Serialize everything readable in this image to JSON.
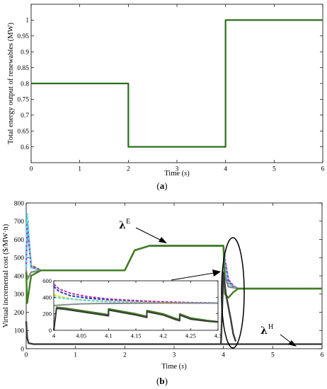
{
  "chart_data": [
    {
      "type": "line",
      "panel_label": "a",
      "xlabel_prefix": "Time",
      "xlabel_unit": "s",
      "ylabel": "Total energy output of renewables (MW)",
      "xlim": [
        0,
        6
      ],
      "ylim": [
        0.55,
        1.05
      ],
      "xticks": [
        "0",
        "1",
        "2",
        "3",
        "4",
        "5",
        "6"
      ],
      "yticks": [
        "0.6",
        "0.65",
        "0.7",
        "0.75",
        "0.8",
        "0.85",
        "0.9",
        "0.95",
        "1"
      ],
      "series": [
        {
          "color": "#2e6e1a",
          "x": [
            0,
            2,
            2,
            4,
            4,
            6
          ],
          "y": [
            0.8,
            0.8,
            0.6,
            0.6,
            1.0,
            1.0
          ]
        }
      ]
    },
    {
      "type": "line",
      "panel_label": "b",
      "xlabel_prefix": "Time",
      "xlabel_unit": "s",
      "ylabel": "Virtual incremental cost ($/MW·h)",
      "xlim": [
        0,
        6
      ],
      "ylim": [
        0,
        800
      ],
      "xticks": [
        "0",
        "1",
        "2",
        "3",
        "4",
        "5",
        "6"
      ],
      "yticks": [
        "0",
        "100",
        "200",
        "300",
        "400",
        "500",
        "600",
        "700",
        "800"
      ],
      "annotations": [
        {
          "symbol": "λ",
          "superscript": "E",
          "x": 1.8,
          "y": 590
        },
        {
          "symbol": "λ",
          "superscript": "H",
          "x": 4.75,
          "y": 100
        }
      ],
      "series": [
        {
          "color": "#ffd000",
          "x": [
            0,
            0.02,
            0.1,
            0.3,
            2.0,
            2.2,
            2.5,
            3.0,
            4.0,
            4.03,
            4.1,
            4.2,
            4.3,
            6.0
          ],
          "y": [
            480,
            720,
            460,
            430,
            430,
            540,
            565,
            565,
            565,
            470,
            350,
            345,
            330,
            330
          ]
        },
        {
          "color": "#1f3bd6",
          "x": [
            0,
            0.02,
            0.1,
            0.3,
            2.0,
            2.2,
            2.5,
            3.0,
            4.0,
            4.03,
            4.1,
            4.2,
            4.3,
            6.0
          ],
          "y": [
            470,
            700,
            455,
            430,
            430,
            540,
            565,
            565,
            565,
            480,
            370,
            340,
            330,
            330
          ]
        },
        {
          "color": "#b03ab0",
          "x": [
            0,
            0.02,
            0.1,
            0.3,
            2.0,
            2.2,
            2.5,
            3.0,
            4.0,
            4.03,
            4.1,
            4.2,
            4.3,
            6.0
          ],
          "y": [
            460,
            680,
            450,
            430,
            430,
            540,
            565,
            565,
            565,
            490,
            380,
            345,
            330,
            330
          ]
        },
        {
          "color": "#4fd8f0",
          "x": [
            0,
            0.02,
            0.1,
            0.3,
            2.0,
            2.2,
            2.5,
            3.0,
            4.0,
            4.03,
            4.1,
            4.2,
            4.3,
            6.0
          ],
          "y": [
            450,
            740,
            445,
            430,
            430,
            540,
            565,
            565,
            565,
            460,
            360,
            340,
            330,
            330
          ]
        },
        {
          "color": "#8a8a8a",
          "x": [
            0,
            0.02,
            0.1,
            0.3,
            2.0,
            2.2,
            2.5,
            3.0,
            4.0,
            4.03,
            4.1,
            4.2,
            4.3,
            6.0
          ],
          "y": [
            430,
            380,
            420,
            430,
            430,
            540,
            565,
            565,
            565,
            400,
            340,
            335,
            330,
            330
          ]
        },
        {
          "color": "#3f7f1f",
          "x": [
            0,
            0.02,
            0.1,
            0.3,
            2.0,
            2.2,
            2.5,
            3.0,
            4.0,
            4.03,
            4.1,
            4.2,
            4.3,
            6.0
          ],
          "y": [
            420,
            250,
            400,
            430,
            430,
            540,
            565,
            565,
            565,
            300,
            280,
            310,
            330,
            330
          ]
        },
        {
          "color": "#3a3a3a",
          "x": [
            0,
            0.02,
            0.05,
            0.15,
            6.0
          ],
          "y": [
            150,
            60,
            30,
            25,
            25
          ]
        },
        {
          "color": "#3a3a3a",
          "x": [
            3.95,
            4.0,
            4.05,
            4.1,
            4.15,
            4.2,
            4.25
          ],
          "y": [
            25,
            420,
            300,
            230,
            160,
            80,
            40
          ]
        }
      ],
      "inset": {
        "xlim": [
          4.0,
          4.3
        ],
        "ylim": [
          0,
          600
        ],
        "xticks": [
          "4",
          "4.05",
          "4.1",
          "4.15",
          "4.2",
          "4.25",
          "4.3"
        ],
        "yticks": [
          "0",
          "200",
          "400",
          "600"
        ],
        "series": [
          {
            "color": "#1f3bd6",
            "x": [
              4.0,
              4.01,
              4.03,
              4.06,
              4.1,
              4.15,
              4.2,
              4.25,
              4.3
            ],
            "y": [
              530,
              470,
              420,
              390,
              370,
              355,
              345,
              335,
              330
            ]
          },
          {
            "color": "#b03ab0",
            "x": [
              4.0,
              4.01,
              4.03,
              4.06,
              4.1,
              4.15,
              4.2,
              4.25,
              4.3
            ],
            "y": [
              560,
              500,
              450,
              410,
              380,
              360,
              345,
              335,
              330
            ]
          },
          {
            "color": "#ffd000",
            "x": [
              4.0,
              4.02,
              4.05,
              4.1,
              4.15,
              4.2,
              4.25,
              4.3
            ],
            "y": [
              430,
              395,
              370,
              350,
              340,
              335,
              330,
              330
            ]
          },
          {
            "color": "#4fd8f0",
            "x": [
              4.0,
              4.02,
              4.05,
              4.1,
              4.15,
              4.2,
              4.25,
              4.3
            ],
            "y": [
              400,
              385,
              365,
              345,
              335,
              330,
              328,
              328
            ]
          },
          {
            "color": "#8a8a8a",
            "x": [
              4.0,
              4.02,
              4.05,
              4.08,
              4.1,
              4.15,
              4.2,
              4.25,
              4.3
            ],
            "y": [
              300,
              310,
              320,
              325,
              325,
              328,
              330,
              330,
              330
            ]
          },
          {
            "color": "#3f7f1f",
            "x": [
              4.0,
              4.005,
              4.02,
              4.05,
              4.08,
              4.1,
              4.1,
              4.15,
              4.17,
              4.17,
              4.2,
              4.22,
              4.23,
              4.23,
              4.25,
              4.28,
              4.3
            ],
            "y": [
              0,
              280,
              270,
              240,
              210,
              190,
              260,
              200,
              170,
              240,
              200,
              150,
              130,
              200,
              150,
              120,
              105
            ]
          },
          {
            "color": "#3a3a3a",
            "x": [
              4.0,
              4.005,
              4.02,
              4.05,
              4.08,
              4.1,
              4.1,
              4.15,
              4.17,
              4.17,
              4.2,
              4.22,
              4.23,
              4.23,
              4.25,
              4.28,
              4.3
            ],
            "y": [
              0,
              265,
              255,
              225,
              195,
              175,
              245,
              185,
              155,
              225,
              185,
              135,
              115,
              185,
              135,
              110,
              100
            ]
          }
        ]
      }
    }
  ]
}
